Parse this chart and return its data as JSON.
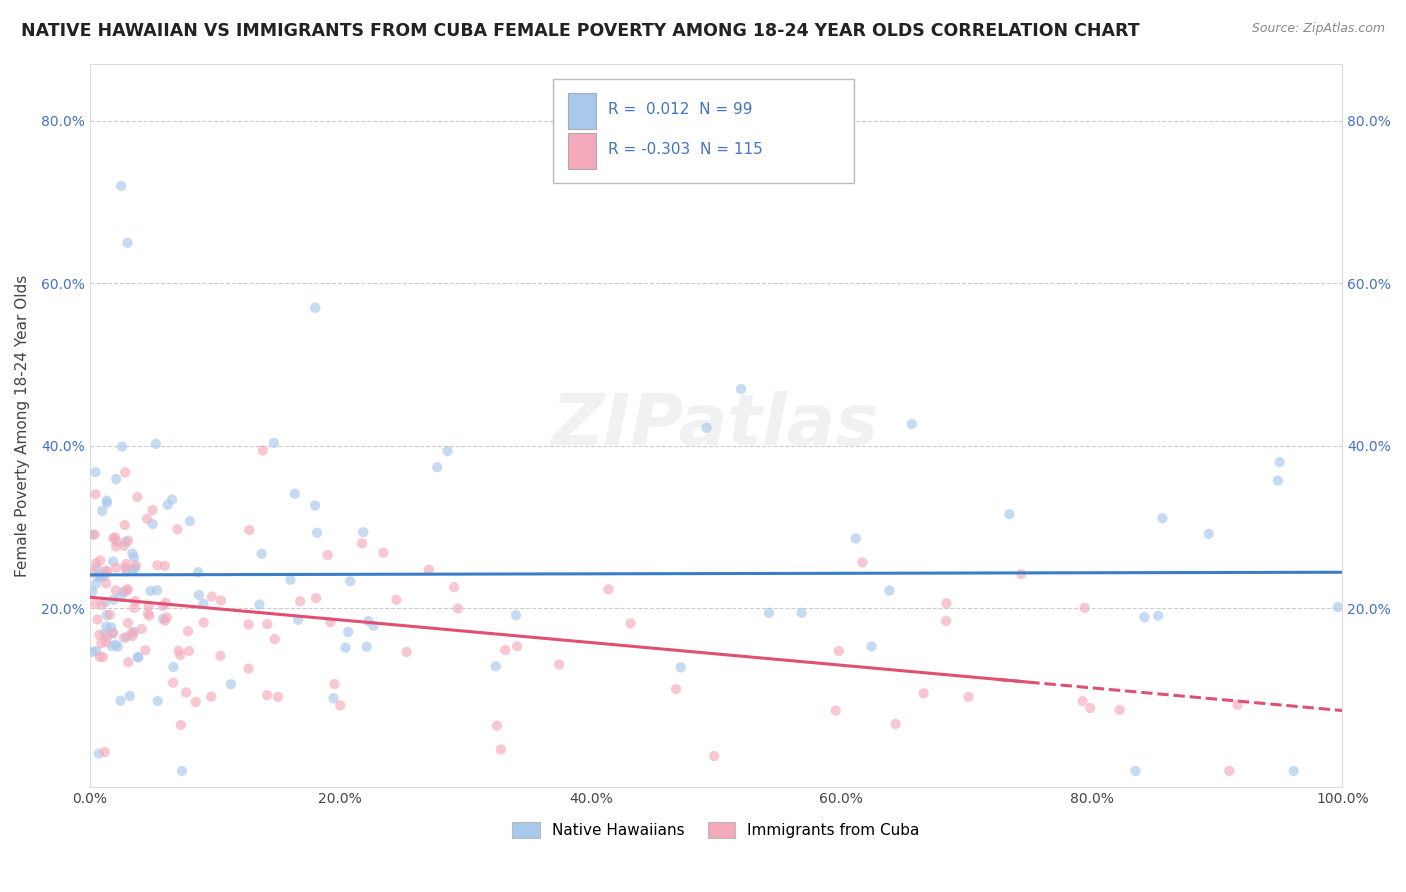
{
  "title": "NATIVE HAWAIIAN VS IMMIGRANTS FROM CUBA FEMALE POVERTY AMONG 18-24 YEAR OLDS CORRELATION CHART",
  "source": "Source: ZipAtlas.com",
  "ylabel": "Female Poverty Among 18-24 Year Olds",
  "xlim": [
    0.0,
    1.0
  ],
  "ylim": [
    -0.02,
    0.87
  ],
  "xtick_labels": [
    "0.0%",
    "20.0%",
    "40.0%",
    "60.0%",
    "80.0%",
    "100.0%"
  ],
  "xtick_values": [
    0.0,
    0.2,
    0.4,
    0.6,
    0.8,
    1.0
  ],
  "ytick_labels": [
    "20.0%",
    "40.0%",
    "60.0%",
    "80.0%"
  ],
  "ytick_values": [
    0.2,
    0.4,
    0.6,
    0.8
  ],
  "color_blue": "#A8C8EC",
  "color_pink": "#F4AABB",
  "color_line_blue": "#3B7DC8",
  "color_line_pink": "#E05070",
  "watermark": "ZIPatlas",
  "title_fontsize": 12.5,
  "axis_label_fontsize": 11,
  "tick_fontsize": 10,
  "scatter_alpha": 0.65,
  "scatter_size": 55,
  "legend_label1": "R =  0.012",
  "legend_n1": "N = 99",
  "legend_label2": "R = -0.303",
  "legend_n2": "N = 115",
  "label_blue": "Native Hawaiians",
  "label_pink": "Immigrants from Cuba"
}
